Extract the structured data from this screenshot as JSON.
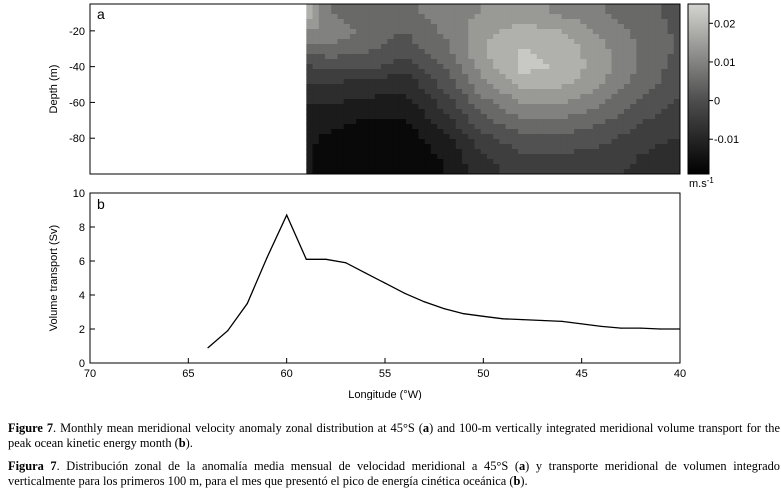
{
  "chart_data": [
    {
      "type": "heatmap",
      "panel_label": "a",
      "ylabel": "Depth (m)",
      "x_range": [
        70,
        40
      ],
      "ylim": [
        -100,
        -5
      ],
      "yticks": [
        "-20",
        "-40",
        "-60",
        "-80"
      ],
      "ytick_values": [
        -20,
        -40,
        -60,
        -80
      ],
      "colorbar": {
        "ticks": [
          "0.02",
          "0.01",
          "0",
          "-0.01"
        ],
        "tick_values": [
          0.02,
          0.01,
          0,
          -0.01
        ],
        "range": [
          -0.019,
          0.025
        ],
        "unit_label": "m.s",
        "unit_exponent": "-1"
      },
      "colors": {
        "low": "#000000",
        "zero": "#4d4d4d",
        "high": "#d4d4d0"
      },
      "x": [
        59,
        58,
        56,
        54,
        52,
        50,
        48,
        46,
        44,
        42,
        40
      ],
      "y": [
        -10,
        -20,
        -30,
        -40,
        -50,
        -60,
        -70,
        -80,
        -90,
        -100
      ],
      "z": [
        [
          0.022,
          0.008,
          0.004,
          0.006,
          0.01,
          0.012,
          0.013,
          0.011,
          0.008,
          0.004,
          0.002
        ],
        [
          0.012,
          0.012,
          0.006,
          0.003,
          0.008,
          0.015,
          0.018,
          0.016,
          0.011,
          0.006,
          0.002
        ],
        [
          0.004,
          0.006,
          0.004,
          0.001,
          0.006,
          0.016,
          0.021,
          0.019,
          0.013,
          0.007,
          0.002
        ],
        [
          -0.002,
          0.0,
          0.0,
          -0.004,
          0.003,
          0.014,
          0.022,
          0.02,
          0.014,
          0.007,
          0.001
        ],
        [
          -0.006,
          -0.006,
          -0.008,
          -0.009,
          0.0,
          0.011,
          0.018,
          0.017,
          0.012,
          0.005,
          0.0
        ],
        [
          -0.01,
          -0.01,
          -0.011,
          -0.012,
          -0.004,
          0.006,
          0.012,
          0.012,
          0.008,
          0.002,
          -0.002
        ],
        [
          -0.013,
          -0.013,
          -0.015,
          -0.015,
          -0.008,
          0.002,
          0.007,
          0.007,
          0.004,
          -0.001,
          -0.004
        ],
        [
          -0.014,
          -0.015,
          -0.017,
          -0.017,
          -0.012,
          -0.003,
          0.002,
          0.002,
          0.0,
          -0.004,
          -0.006
        ],
        [
          -0.014,
          -0.016,
          -0.018,
          -0.018,
          -0.014,
          -0.006,
          -0.002,
          -0.002,
          -0.003,
          -0.006,
          -0.008
        ],
        [
          -0.014,
          -0.016,
          -0.018,
          -0.018,
          -0.015,
          -0.008,
          -0.004,
          -0.004,
          -0.005,
          -0.007,
          -0.009
        ]
      ]
    },
    {
      "type": "line",
      "panel_label": "b",
      "xlabel": "Longitude (°W)",
      "ylabel": "Volume transport (Sv)",
      "xlim": [
        70,
        40
      ],
      "ylim": [
        0,
        10
      ],
      "xticks": [
        "70",
        "65",
        "60",
        "55",
        "50",
        "45",
        "40"
      ],
      "xtick_values": [
        70,
        65,
        60,
        55,
        50,
        45,
        40
      ],
      "yticks": [
        "0",
        "2",
        "4",
        "6",
        "8",
        "10"
      ],
      "ytick_values": [
        0,
        2,
        4,
        6,
        8,
        10
      ],
      "x": [
        64,
        63,
        62,
        61,
        60,
        59,
        58,
        57,
        56,
        55,
        54,
        53,
        52,
        51,
        50,
        49,
        48,
        47,
        46,
        45,
        44,
        43,
        42,
        41,
        40
      ],
      "values": [
        0.9,
        1.9,
        3.5,
        6.2,
        8.7,
        6.1,
        6.1,
        5.9,
        5.3,
        4.7,
        4.1,
        3.6,
        3.2,
        2.9,
        2.75,
        2.6,
        2.55,
        2.5,
        2.45,
        2.3,
        2.15,
        2.05,
        2.05,
        2.0,
        2.0
      ]
    }
  ],
  "caption_en": {
    "label": "Figure 7",
    "text_1": ". Monthly mean meridional velocity anomaly zonal distribution at 45°S (",
    "ref_a": "a",
    "text_2": ") and 100-m vertically integrated meridional volume transport for the peak ocean kinetic energy month (",
    "ref_b": "b",
    "text_3": ")."
  },
  "caption_es": {
    "label": "Figura 7",
    "text_1": ". Distribución zonal de la anomalía media mensual de velocidad meridional a 45°S (",
    "ref_a": "a",
    "text_2": ") y transporte meridional de volumen integrado verticalmente para los primeros 100 m, para el mes que presentó el pico de energía cinética oceánica (",
    "ref_b": "b",
    "text_3": ")."
  }
}
